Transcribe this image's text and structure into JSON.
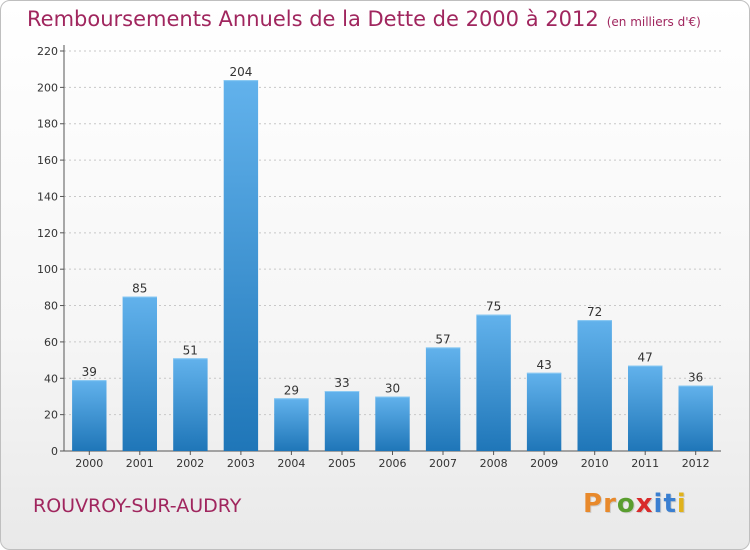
{
  "header": {
    "title": "Remboursements Annuels de la Dette de 2000 à 2012",
    "unit": "(en milliers d'€)"
  },
  "footer": {
    "commune": "ROUVROY-SUR-AUDRY",
    "logo_letters": [
      "P",
      "r",
      "o",
      "x",
      "i",
      "t",
      "i"
    ],
    "logo_colors": [
      "#e8892b",
      "#e8892b",
      "#5a9e2f",
      "#d92b2b",
      "#3a7fd1",
      "#3a7fd1",
      "#e0b21c"
    ]
  },
  "colors": {
    "title": "#a0265e",
    "bar_top": "#62b2ec",
    "bar_bottom": "#1f76b8"
  },
  "chart_data": {
    "type": "bar",
    "title": "Remboursements Annuels de la Dette de 2000 à 2012",
    "xlabel": "",
    "ylabel": "",
    "categories": [
      "2000",
      "2001",
      "2002",
      "2003",
      "2004",
      "2005",
      "2006",
      "2007",
      "2008",
      "2009",
      "2010",
      "2011",
      "2012"
    ],
    "values": [
      39,
      85,
      51,
      204,
      29,
      33,
      30,
      57,
      75,
      43,
      72,
      47,
      36
    ],
    "ylim": [
      0,
      220
    ],
    "yticks": [
      0,
      20,
      40,
      60,
      80,
      100,
      120,
      140,
      160,
      180,
      200,
      220
    ],
    "grid": true
  }
}
